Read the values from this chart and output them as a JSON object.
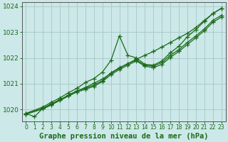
{
  "title": "Graphe pression niveau de la mer (hPa)",
  "bg_color": "#cce8e8",
  "grid_color": "#aacccc",
  "line_color": "#1a6b1a",
  "xlim": [
    -0.5,
    23.5
  ],
  "ylim": [
    1019.55,
    1024.15
  ],
  "yticks": [
    1020,
    1021,
    1022,
    1023,
    1024
  ],
  "xticks": [
    0,
    1,
    2,
    3,
    4,
    5,
    6,
    7,
    8,
    9,
    10,
    11,
    12,
    13,
    14,
    15,
    16,
    17,
    18,
    19,
    20,
    21,
    22,
    23
  ],
  "series": [
    {
      "x": [
        0,
        1,
        2,
        3,
        4,
        5,
        6,
        7,
        8,
        9,
        10,
        11,
        12,
        13,
        14,
        15,
        16,
        17,
        18,
        19,
        20,
        21,
        22,
        23
      ],
      "y": [
        1019.85,
        1019.72,
        1020.05,
        1020.22,
        1020.38,
        1020.55,
        1020.72,
        1020.85,
        1021.02,
        1021.18,
        1021.4,
        1021.6,
        1021.78,
        1021.95,
        1022.1,
        1022.25,
        1022.42,
        1022.6,
        1022.78,
        1022.95,
        1023.18,
        1023.45,
        1023.72,
        1023.92
      ]
    },
    {
      "x": [
        0,
        2,
        3,
        4,
        5,
        6,
        7,
        8,
        9,
        10,
        11,
        12,
        13,
        14,
        15,
        16,
        17,
        18,
        19,
        20,
        21,
        22,
        23
      ],
      "y": [
        1019.85,
        1020.1,
        1020.28,
        1020.45,
        1020.65,
        1020.82,
        1021.05,
        1021.2,
        1021.45,
        1021.9,
        1022.85,
        1022.1,
        1022.0,
        1021.75,
        1021.72,
        1021.88,
        1022.2,
        1022.45,
        1022.82,
        1023.1,
        1023.42,
        1023.72,
        1023.92
      ]
    },
    {
      "x": [
        0,
        2,
        3,
        4,
        5,
        6,
        7,
        8,
        9,
        10,
        11,
        12,
        13,
        14,
        15,
        16,
        17,
        18,
        19,
        20,
        21,
        22,
        23
      ],
      "y": [
        1019.82,
        1020.05,
        1020.2,
        1020.38,
        1020.55,
        1020.72,
        1020.82,
        1020.95,
        1021.12,
        1021.42,
        1021.62,
        1021.78,
        1021.92,
        1021.72,
        1021.68,
        1021.82,
        1022.1,
        1022.32,
        1022.6,
        1022.85,
        1023.12,
        1023.45,
        1023.65
      ]
    },
    {
      "x": [
        0,
        2,
        3,
        4,
        5,
        6,
        7,
        8,
        9,
        10,
        11,
        12,
        13,
        14,
        15,
        16,
        17,
        18,
        19,
        20,
        21,
        22,
        23
      ],
      "y": [
        1019.82,
        1020.02,
        1020.18,
        1020.35,
        1020.52,
        1020.68,
        1020.78,
        1020.9,
        1021.08,
        1021.35,
        1021.55,
        1021.72,
        1021.88,
        1021.68,
        1021.62,
        1021.75,
        1022.02,
        1022.25,
        1022.52,
        1022.78,
        1023.05,
        1023.38,
        1023.58
      ]
    }
  ],
  "marker": "+",
  "markersize": 4,
  "linewidth": 0.9,
  "tick_fontsize": 6.5,
  "xlabel_fontsize": 7.5,
  "title_color": "#1a6b1a",
  "tick_color": "#1a6b1a",
  "axis_color": "#555555"
}
